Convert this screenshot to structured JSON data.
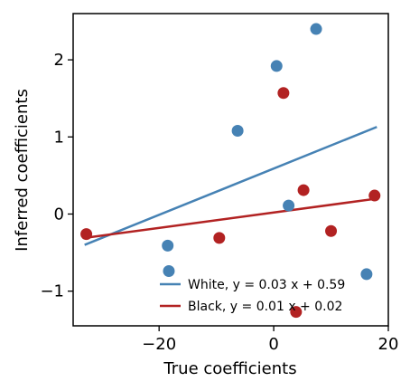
{
  "chart_data": {
    "type": "scatter",
    "title": "",
    "xlabel": "True coefficients",
    "ylabel": "Inferred coefficients",
    "xlim": [
      -35,
      20
    ],
    "ylim": [
      -1.45,
      2.6
    ],
    "xticks": [
      -20,
      0,
      20
    ],
    "yticks": [
      -1,
      0,
      1,
      2
    ],
    "grid": false,
    "legend_position": "lower-right",
    "series": [
      {
        "name": "White",
        "color": "#4682b4",
        "points": [
          {
            "x": -18.5,
            "y": -0.41
          },
          {
            "x": -18.3,
            "y": -0.74
          },
          {
            "x": -6.3,
            "y": 1.08
          },
          {
            "x": 0.5,
            "y": 1.92
          },
          {
            "x": 2.6,
            "y": 0.11
          },
          {
            "x": 7.4,
            "y": 2.4
          },
          {
            "x": 16.2,
            "y": -0.78
          }
        ],
        "fit": {
          "slope": 0.03,
          "intercept": 0.59,
          "x_range": [
            -33,
            18
          ]
        },
        "legend_label": "White, y = 0.03 x + 0.59"
      },
      {
        "name": "Black",
        "color": "#b22222",
        "points": [
          {
            "x": -32.7,
            "y": -0.26
          },
          {
            "x": -9.5,
            "y": -0.31
          },
          {
            "x": 1.7,
            "y": 1.57
          },
          {
            "x": 3.9,
            "y": -1.27
          },
          {
            "x": 5.2,
            "y": 0.31
          },
          {
            "x": 10.0,
            "y": -0.22
          },
          {
            "x": 17.6,
            "y": 0.24
          }
        ],
        "fit": {
          "slope": 0.01,
          "intercept": 0.02,
          "x_range": [
            -33,
            18
          ]
        },
        "legend_label": "Black, y = 0.01 x + 0.02"
      }
    ]
  }
}
